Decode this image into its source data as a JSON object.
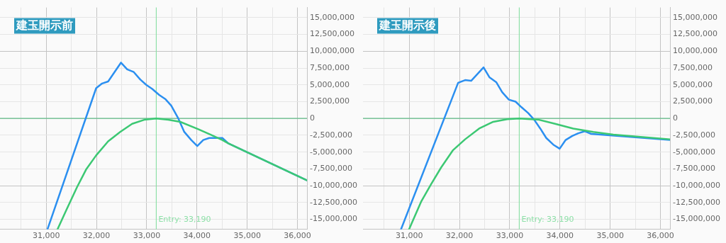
{
  "chart_data": [
    {
      "type": "line",
      "title": "建玉開示前",
      "xlim": [
        30080,
        36190
      ],
      "ylim": [
        -16500000,
        16500000
      ],
      "xticks": [
        {
          "value": 30500,
          "label": null
        },
        {
          "value": 31000,
          "label": "31,000"
        },
        {
          "value": 31500,
          "label": null
        },
        {
          "value": 32000,
          "label": "32,000"
        },
        {
          "value": 32500,
          "label": null
        },
        {
          "value": 33000,
          "label": "33,000"
        },
        {
          "value": 33500,
          "label": null
        },
        {
          "value": 34000,
          "label": "34,000"
        },
        {
          "value": 34500,
          "label": null
        },
        {
          "value": 35000,
          "label": "35,000"
        },
        {
          "value": 35500,
          "label": null
        },
        {
          "value": 36000,
          "label": "36,000"
        }
      ],
      "yticks": [
        {
          "value": -15000000,
          "label": "-15,000,000"
        },
        {
          "value": -12500000,
          "label": "-12,500,000"
        },
        {
          "value": -10000000,
          "label": "-10,000,000"
        },
        {
          "value": -7500000,
          "label": "-7,500,000"
        },
        {
          "value": -5000000,
          "label": "-5,000,000"
        },
        {
          "value": -2500000,
          "label": "-2,500,000"
        },
        {
          "value": 0,
          "label": "0"
        },
        {
          "value": 2500000,
          "label": "2,500,000"
        },
        {
          "value": 5000000,
          "label": "5,000,000"
        },
        {
          "value": 7500000,
          "label": "7,500,000"
        },
        {
          "value": 10000000,
          "label": "10,000,000"
        },
        {
          "value": 12500000,
          "label": "12,500,000"
        },
        {
          "value": 15000000,
          "label": "15,000,000"
        }
      ],
      "grid": true,
      "legend": false,
      "marker": "none",
      "ref_lines": [
        {
          "axis": "x",
          "value": 33190,
          "label": "Entry: 33,190",
          "color": "#8ee0a8"
        },
        {
          "axis": "y",
          "value": 0,
          "color": "#5db883"
        }
      ],
      "series": [
        {
          "color": "#3cc873",
          "x": [
            31224,
            31395,
            31614,
            31793,
            31993,
            32232,
            32471,
            32710,
            32950,
            33189,
            33428,
            33667,
            34026,
            34265,
            34504,
            34624,
            36190
          ],
          "values": [
            -16500000,
            -13700000,
            -10200000,
            -7600000,
            -5500000,
            -3400000,
            -2000000,
            -800000,
            -200000,
            0,
            -200000,
            -500000,
            -1600000,
            -2400000,
            -3200000,
            -3700000,
            -9200000
          ]
        },
        {
          "color": "#2b8ff0",
          "x": [
            31024,
            31993,
            32112,
            32232,
            32487,
            32611,
            32742,
            32870,
            32990,
            33109,
            33248,
            33368,
            33488,
            33628,
            33747,
            33886,
            34006,
            34125,
            34245,
            34504,
            34624,
            36190
          ],
          "values": [
            -16500000,
            4500000,
            5200000,
            5500000,
            8300000,
            7300000,
            6900000,
            5800000,
            5000000,
            4400000,
            3500000,
            2900000,
            1900000,
            0,
            -2000000,
            -3200000,
            -4100000,
            -3200000,
            -2900000,
            -2900000,
            -3700000,
            -9200000
          ]
        }
      ]
    },
    {
      "type": "line",
      "title": "建玉開示後",
      "xlim": [
        30080,
        36190
      ],
      "ylim": [
        -16500000,
        16500000
      ],
      "xticks": [
        {
          "value": 30500,
          "label": null
        },
        {
          "value": 31000,
          "label": "31,000"
        },
        {
          "value": 31500,
          "label": null
        },
        {
          "value": 32000,
          "label": "32,000"
        },
        {
          "value": 32500,
          "label": null
        },
        {
          "value": 33000,
          "label": "33,000"
        },
        {
          "value": 33500,
          "label": null
        },
        {
          "value": 34000,
          "label": "34,000"
        },
        {
          "value": 34500,
          "label": null
        },
        {
          "value": 35000,
          "label": "35,000"
        },
        {
          "value": 35500,
          "label": null
        },
        {
          "value": 36000,
          "label": "36,000"
        }
      ],
      "yticks": [
        {
          "value": -15000000,
          "label": "-15,000,000"
        },
        {
          "value": -12500000,
          "label": "-12,500,000"
        },
        {
          "value": -10000000,
          "label": "-10,000,000"
        },
        {
          "value": -7500000,
          "label": "-7,500,000"
        },
        {
          "value": -5000000,
          "label": "-5,000,000"
        },
        {
          "value": -2500000,
          "label": "-2,500,000"
        },
        {
          "value": 0,
          "label": "0"
        },
        {
          "value": 2500000,
          "label": "2,500,000"
        },
        {
          "value": 5000000,
          "label": "5,000,000"
        },
        {
          "value": 7500000,
          "label": "7,500,000"
        },
        {
          "value": 10000000,
          "label": "10,000,000"
        },
        {
          "value": 12500000,
          "label": "12,500,000"
        },
        {
          "value": 15000000,
          "label": "15,000,000"
        }
      ],
      "grid": true,
      "legend": false,
      "marker": "none",
      "ref_lines": [
        {
          "axis": "x",
          "value": 33190,
          "label": "Entry: 33,190",
          "color": "#8ee0a8"
        },
        {
          "axis": "y",
          "value": 0,
          "color": "#5db883"
        }
      ],
      "series": [
        {
          "color": "#3cc873",
          "x": [
            30996,
            31235,
            31434,
            31634,
            31873,
            32112,
            32391,
            32671,
            32950,
            33189,
            33584,
            33903,
            34265,
            34664,
            35062,
            36190
          ],
          "values": [
            -16500000,
            -12400000,
            -9800000,
            -7300000,
            -4700000,
            -3100000,
            -1500000,
            -500000,
            -100000,
            0,
            -200000,
            -800000,
            -1500000,
            -2000000,
            -2400000,
            -3100000
          ]
        },
        {
          "color": "#2b8ff0",
          "x": [
            30836,
            31973,
            32112,
            32232,
            32479,
            32599,
            32731,
            32850,
            32982,
            33117,
            33229,
            33368,
            33488,
            33608,
            33727,
            33867,
            33994,
            34113,
            34245,
            34364,
            34496,
            34624,
            36190
          ],
          "values": [
            -16500000,
            5300000,
            5700000,
            5600000,
            7600000,
            6100000,
            5400000,
            3900000,
            2800000,
            2500000,
            1700000,
            800000,
            -200000,
            -1500000,
            -2900000,
            -3900000,
            -4500000,
            -3200000,
            -2600000,
            -2200000,
            -1900000,
            -2300000,
            -3200000
          ]
        }
      ]
    }
  ]
}
